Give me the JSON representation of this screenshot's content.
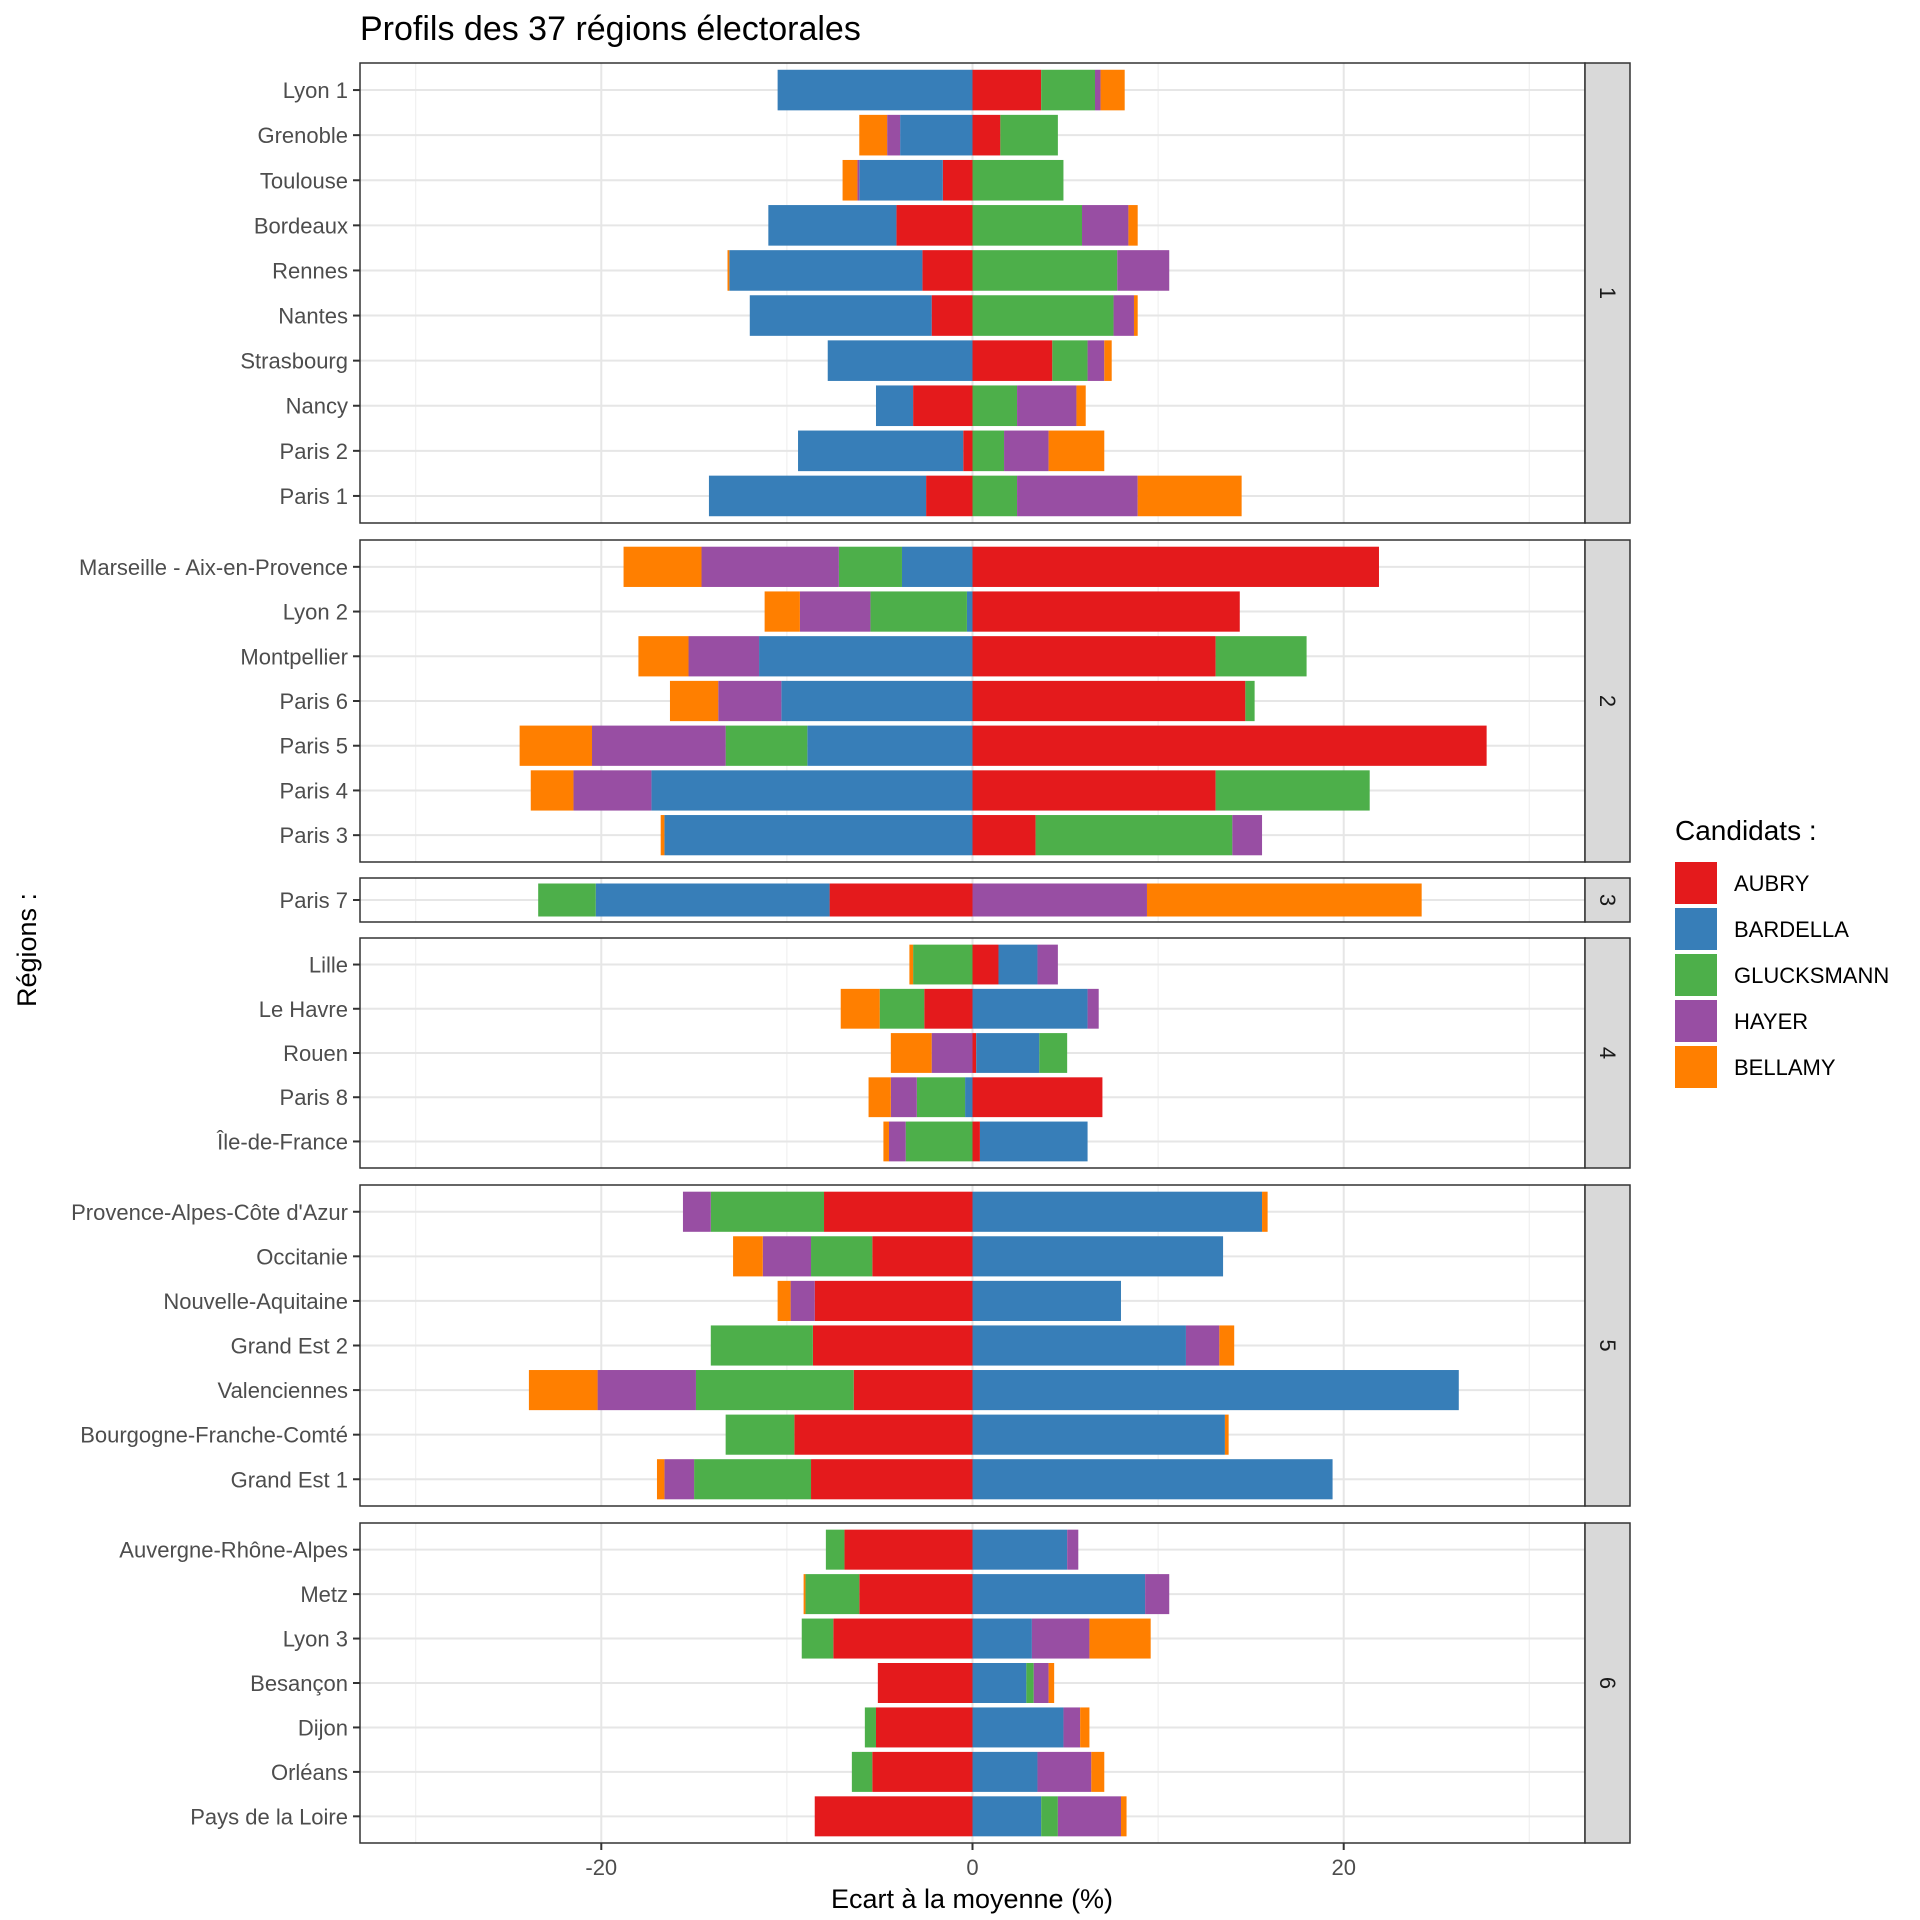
{
  "chart_data": {
    "type": "bar",
    "orientation": "horizontal-stacked-diverging",
    "title": "Profils des 37 régions électorales",
    "xlabel": "Ecart à la moyenne (%)",
    "ylabel": "Régions :",
    "xlim": [
      -33,
      33
    ],
    "xticks": [
      -20,
      0,
      20
    ],
    "grid": true,
    "legend": {
      "title": "Candidats :",
      "position": "right",
      "entries": [
        {
          "name": "AUBRY",
          "color": "#E41A1C"
        },
        {
          "name": "BARDELLA",
          "color": "#377EB8"
        },
        {
          "name": "GLUCKSMANN",
          "color": "#4DAF4A"
        },
        {
          "name": "HAYER",
          "color": "#984EA3"
        },
        {
          "name": "BELLAMY",
          "color": "#FF7F00"
        }
      ]
    },
    "series_order": [
      "AUBRY",
      "BARDELLA",
      "GLUCKSMANN",
      "HAYER",
      "BELLAMY"
    ],
    "facets": [
      {
        "label": "1",
        "regions": [
          {
            "name": "Lyon 1",
            "values": {
              "AUBRY": 3.7,
              "BARDELLA": -10.5,
              "GLUCKSMANN": 2.9,
              "HAYER": 0.3,
              "BELLAMY": 1.3
            }
          },
          {
            "name": "Grenoble",
            "values": {
              "AUBRY": 1.5,
              "BARDELLA": -3.9,
              "GLUCKSMANN": 3.1,
              "HAYER": -0.7,
              "BELLAMY": -1.5
            }
          },
          {
            "name": "Toulouse",
            "values": {
              "AUBRY": -1.6,
              "BARDELLA": -4.5,
              "GLUCKSMANN": 4.9,
              "HAYER": -0.1,
              "BELLAMY": -0.8
            }
          },
          {
            "name": "Bordeaux",
            "values": {
              "AUBRY": -4.1,
              "BARDELLA": -6.9,
              "GLUCKSMANN": 5.9,
              "HAYER": 2.5,
              "BELLAMY": 0.5
            }
          },
          {
            "name": "Rennes",
            "values": {
              "AUBRY": -2.7,
              "BARDELLA": -10.4,
              "GLUCKSMANN": 7.8,
              "HAYER": 2.8,
              "BELLAMY": -0.1
            }
          },
          {
            "name": "Nantes",
            "values": {
              "AUBRY": -2.2,
              "BARDELLA": -9.8,
              "GLUCKSMANN": 7.6,
              "HAYER": 1.1,
              "BELLAMY": 0.2
            }
          },
          {
            "name": "Strasbourg ",
            "values": {
              "AUBRY": 4.3,
              "BARDELLA": -7.8,
              "GLUCKSMANN": 1.9,
              "HAYER": 0.9,
              "BELLAMY": 0.4
            }
          },
          {
            "name": "Nancy",
            "values": {
              "AUBRY": -3.2,
              "BARDELLA": -2.0,
              "GLUCKSMANN": 2.4,
              "HAYER": 3.2,
              "BELLAMY": 0.5
            }
          },
          {
            "name": "Paris 2",
            "values": {
              "AUBRY": -0.5,
              "BARDELLA": -8.9,
              "GLUCKSMANN": 1.7,
              "HAYER": 2.4,
              "BELLAMY": 3.0
            }
          },
          {
            "name": "Paris 1",
            "values": {
              "AUBRY": -2.5,
              "BARDELLA": -11.7,
              "GLUCKSMANN": 2.4,
              "HAYER": 6.5,
              "BELLAMY": 5.6
            }
          }
        ]
      },
      {
        "label": "2",
        "regions": [
          {
            "name": "Marseille - Aix-en-Provence",
            "values": {
              "AUBRY": 21.9,
              "BARDELLA": -3.8,
              "GLUCKSMANN": -3.4,
              "HAYER": -7.4,
              "BELLAMY": -4.2
            }
          },
          {
            "name": "Lyon 2",
            "values": {
              "AUBRY": 14.4,
              "BARDELLA": -0.3,
              "GLUCKSMANN": -5.2,
              "HAYER": -3.8,
              "BELLAMY": -1.9
            }
          },
          {
            "name": "Montpellier",
            "values": {
              "AUBRY": 13.1,
              "BARDELLA": -11.5,
              "GLUCKSMANN": 4.9,
              "HAYER": -3.8,
              "BELLAMY": -2.7
            }
          },
          {
            "name": "Paris 6",
            "values": {
              "AUBRY": 14.7,
              "BARDELLA": -10.3,
              "GLUCKSMANN": 0.5,
              "HAYER": -3.4,
              "BELLAMY": -2.6
            }
          },
          {
            "name": "Paris 5",
            "values": {
              "AUBRY": 27.7,
              "BARDELLA": -8.9,
              "GLUCKSMANN": -4.4,
              "HAYER": -7.2,
              "BELLAMY": -3.9
            }
          },
          {
            "name": "Paris 4",
            "values": {
              "AUBRY": 13.1,
              "BARDELLA": -17.3,
              "GLUCKSMANN": 8.3,
              "HAYER": -4.2,
              "BELLAMY": -2.3
            }
          },
          {
            "name": "Paris 3",
            "values": {
              "AUBRY": 3.4,
              "BARDELLA": -16.6,
              "GLUCKSMANN": 10.6,
              "HAYER": 1.6,
              "BELLAMY": -0.2
            }
          }
        ]
      },
      {
        "label": "3",
        "regions": [
          {
            "name": "Paris 7",
            "values": {
              "AUBRY": -7.7,
              "BARDELLA": -12.6,
              "GLUCKSMANN": -3.1,
              "HAYER": 9.4,
              "BELLAMY": 14.8
            }
          }
        ]
      },
      {
        "label": "4",
        "regions": [
          {
            "name": "Lille ",
            "values": {
              "AUBRY": 1.4,
              "BARDELLA": 2.1,
              "GLUCKSMANN": -3.2,
              "HAYER": 1.1,
              "BELLAMY": -0.2
            }
          },
          {
            "name": "Le Havre",
            "values": {
              "AUBRY": -2.6,
              "BARDELLA": 6.2,
              "GLUCKSMANN": -2.4,
              "HAYER": 0.6,
              "BELLAMY": -2.1
            }
          },
          {
            "name": "Rouen",
            "values": {
              "AUBRY": 0.2,
              "BARDELLA": 3.4,
              "GLUCKSMANN": 1.5,
              "HAYER": -2.2,
              "BELLAMY": -2.2
            }
          },
          {
            "name": "Paris 8",
            "values": {
              "AUBRY": 7.0,
              "BARDELLA": -0.4,
              "GLUCKSMANN": -2.6,
              "HAYER": -1.4,
              "BELLAMY": -1.2
            }
          },
          {
            "name": "Île-de-France",
            "values": {
              "AUBRY": 0.4,
              "BARDELLA": 5.8,
              "GLUCKSMANN": -3.6,
              "HAYER": -0.9,
              "BELLAMY": -0.3
            }
          }
        ]
      },
      {
        "label": "5",
        "regions": [
          {
            "name": "Provence-Alpes-Côte d'Azur",
            "values": {
              "AUBRY": -8.0,
              "BARDELLA": 15.6,
              "GLUCKSMANN": -6.1,
              "HAYER": -1.5,
              "BELLAMY": 0.3
            }
          },
          {
            "name": "Occitanie",
            "values": {
              "AUBRY": -5.4,
              "BARDELLA": 13.5,
              "GLUCKSMANN": -3.3,
              "HAYER": -2.6,
              "BELLAMY": -1.6
            }
          },
          {
            "name": "Nouvelle-Aquitaine",
            "values": {
              "AUBRY": -8.5,
              "BARDELLA": 8.0,
              "GLUCKSMANN": 0.0,
              "HAYER": -1.3,
              "BELLAMY": -0.7
            }
          },
          {
            "name": "Grand Est 2",
            "values": {
              "AUBRY": -8.6,
              "BARDELLA": 11.5,
              "GLUCKSMANN": -5.5,
              "HAYER": 1.8,
              "BELLAMY": 0.8
            }
          },
          {
            "name": "Valenciennes ",
            "values": {
              "AUBRY": -6.4,
              "BARDELLA": 26.2,
              "GLUCKSMANN": -8.5,
              "HAYER": -5.3,
              "BELLAMY": -3.7
            }
          },
          {
            "name": "Bourgogne-Franche-Comté",
            "values": {
              "AUBRY": -9.6,
              "BARDELLA": 13.6,
              "GLUCKSMANN": -3.7,
              "HAYER": 0.0,
              "BELLAMY": 0.2
            }
          },
          {
            "name": "Grand Est 1",
            "values": {
              "AUBRY": -8.7,
              "BARDELLA": 19.4,
              "GLUCKSMANN": -6.3,
              "HAYER": -1.6,
              "BELLAMY": -0.4
            }
          }
        ]
      },
      {
        "label": "6",
        "regions": [
          {
            "name": "Auvergne-Rhône-Alpes",
            "values": {
              "AUBRY": -6.9,
              "BARDELLA": 5.1,
              "GLUCKSMANN": -1.0,
              "HAYER": 0.6,
              "BELLAMY": 0.0
            }
          },
          {
            "name": "Metz",
            "values": {
              "AUBRY": -6.1,
              "BARDELLA": 9.3,
              "GLUCKSMANN": -2.9,
              "HAYER": 1.3,
              "BELLAMY": -0.1
            }
          },
          {
            "name": "Lyon 3",
            "values": {
              "AUBRY": -7.5,
              "BARDELLA": 3.2,
              "GLUCKSMANN": -1.7,
              "HAYER": 3.1,
              "BELLAMY": 3.3
            }
          },
          {
            "name": "Besançon",
            "values": {
              "AUBRY": -5.1,
              "BARDELLA": 2.9,
              "GLUCKSMANN": 0.4,
              "HAYER": 0.8,
              "BELLAMY": 0.3
            }
          },
          {
            "name": "Dijon",
            "values": {
              "AUBRY": -5.2,
              "BARDELLA": 4.9,
              "GLUCKSMANN": -0.6,
              "HAYER": 0.9,
              "BELLAMY": 0.5
            }
          },
          {
            "name": "Orléans",
            "values": {
              "AUBRY": -5.4,
              "BARDELLA": 3.5,
              "GLUCKSMANN": -1.1,
              "HAYER": 2.9,
              "BELLAMY": 0.7
            }
          },
          {
            "name": "Pays de la Loire",
            "values": {
              "AUBRY": -8.5,
              "BARDELLA": 3.7,
              "GLUCKSMANN": 0.9,
              "HAYER": 3.4,
              "BELLAMY": 0.3
            }
          }
        ]
      }
    ]
  }
}
